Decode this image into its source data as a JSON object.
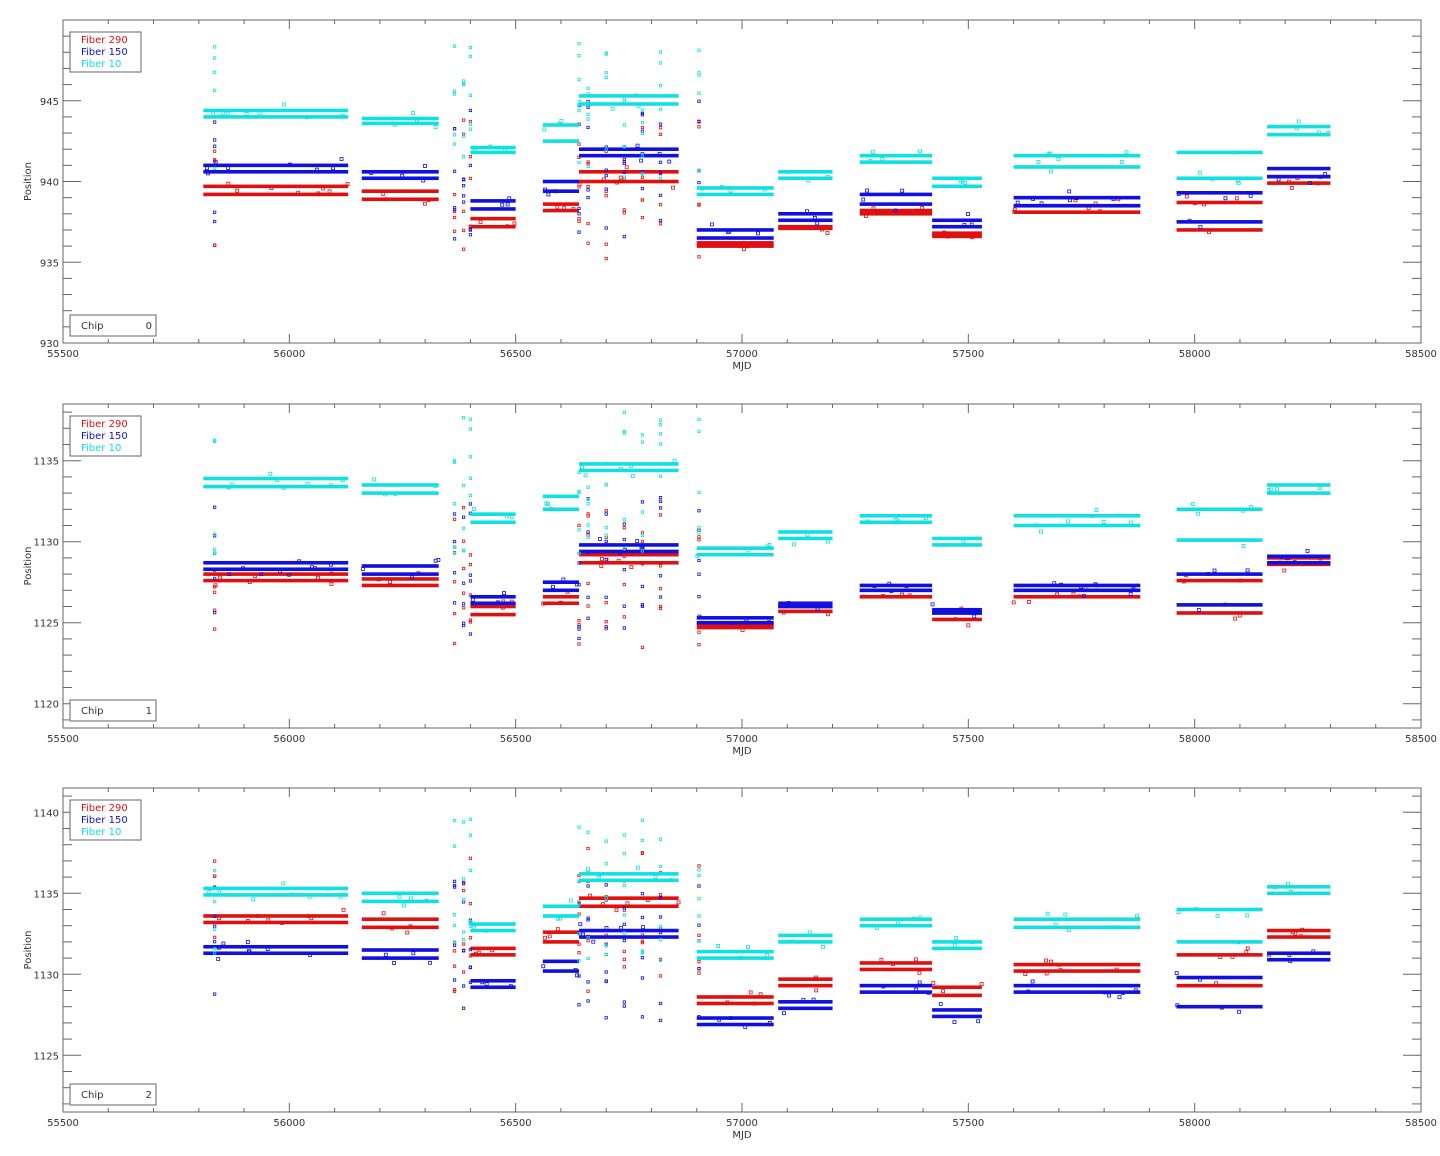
{
  "chart_data": [
    {
      "type": "scatter",
      "title": "",
      "xlabel": "MJD",
      "ylabel": "Position",
      "xlim": [
        55500,
        58500
      ],
      "ylim": [
        930,
        950
      ],
      "xticks": [
        55500,
        56000,
        56500,
        57000,
        57500,
        58000,
        58500
      ],
      "yticks": [
        930,
        935,
        940,
        945
      ],
      "legend": [
        "Fiber 290",
        "Fiber 150",
        "Fiber 10"
      ],
      "chip_label": "Chip",
      "chip_number": "0",
      "series": [
        {
          "name": "Fiber 290",
          "color": "#e01010",
          "segments": [
            [
              55810,
              56130,
              939.2,
              939.7
            ],
            [
              56160,
              56330,
              938.9,
              939.4
            ],
            [
              56400,
              56500,
              937.2,
              937.7
            ],
            [
              56560,
              56640,
              938.2,
              938.6
            ],
            [
              56640,
              56860,
              940.0,
              940.6
            ],
            [
              56900,
              57070,
              936.0,
              936.2
            ],
            [
              57080,
              57200,
              937.1,
              937.2
            ],
            [
              57260,
              57420,
              938.0,
              938.2
            ],
            [
              57420,
              57530,
              936.6,
              936.8
            ],
            [
              57600,
              57880,
              938.1,
              938.5
            ],
            [
              57960,
              58150,
              937.0,
              938.7
            ],
            [
              58160,
              58300,
              939.9,
              940.3
            ]
          ]
        },
        {
          "name": "Fiber 150",
          "color": "#1010e0",
          "segments": [
            [
              55810,
              56130,
              940.6,
              941.0
            ],
            [
              56160,
              56330,
              940.2,
              940.6
            ],
            [
              56400,
              56500,
              938.3,
              938.8
            ],
            [
              56560,
              56640,
              939.4,
              940.0
            ],
            [
              56640,
              56860,
              941.6,
              942.0
            ],
            [
              56900,
              57070,
              936.5,
              937.0
            ],
            [
              57080,
              57200,
              937.6,
              938.0
            ],
            [
              57260,
              57420,
              938.6,
              939.2
            ],
            [
              57420,
              57530,
              937.2,
              937.6
            ],
            [
              57600,
              57880,
              938.5,
              939.0
            ],
            [
              57960,
              58150,
              937.5,
              939.3
            ],
            [
              58160,
              58300,
              940.3,
              940.8
            ]
          ]
        },
        {
          "name": "Fiber 10",
          "color": "#10e0e0",
          "segments": [
            [
              55810,
              56130,
              944.0,
              944.4
            ],
            [
              56160,
              56330,
              943.6,
              943.9
            ],
            [
              56400,
              56500,
              941.8,
              942.1
            ],
            [
              56560,
              56640,
              942.5,
              943.5
            ],
            [
              56640,
              56860,
              944.8,
              945.3
            ],
            [
              56900,
              57070,
              939.2,
              939.6
            ],
            [
              57080,
              57200,
              940.2,
              940.6
            ],
            [
              57260,
              57420,
              941.2,
              941.6
            ],
            [
              57420,
              57530,
              939.7,
              940.2
            ],
            [
              57600,
              57880,
              940.9,
              941.6
            ],
            [
              57960,
              58150,
              940.2,
              941.8
            ],
            [
              58160,
              58300,
              942.9,
              943.4
            ]
          ]
        }
      ]
    },
    {
      "type": "scatter",
      "title": "",
      "xlabel": "MJD",
      "ylabel": "Position",
      "xlim": [
        55500,
        58500
      ],
      "ylim": [
        1118.5,
        1138.5
      ],
      "xticks": [
        55500,
        56000,
        56500,
        57000,
        57500,
        58000,
        58500
      ],
      "yticks": [
        1120,
        1125,
        1130,
        1135
      ],
      "legend": [
        "Fiber 290",
        "Fiber 150",
        "Fiber 10"
      ],
      "chip_label": "Chip",
      "chip_number": "1",
      "series": [
        {
          "name": "Fiber 290",
          "color": "#e01010",
          "segments": [
            [
              55810,
              56130,
              1127.6,
              1128.0
            ],
            [
              56160,
              56330,
              1127.3,
              1127.7
            ],
            [
              56400,
              56500,
              1125.5,
              1126.0
            ],
            [
              56560,
              56640,
              1126.2,
              1126.6
            ],
            [
              56640,
              56860,
              1128.7,
              1129.2
            ],
            [
              56900,
              57070,
              1124.7,
              1124.9
            ],
            [
              57080,
              57200,
              1125.7,
              1126.0
            ],
            [
              57260,
              57420,
              1126.6,
              1127.0
            ],
            [
              57420,
              57530,
              1125.2,
              1125.6
            ],
            [
              57600,
              57880,
              1126.6,
              1127.0
            ],
            [
              57960,
              58150,
              1125.6,
              1127.6
            ],
            [
              58160,
              58300,
              1128.6,
              1129.0
            ]
          ]
        },
        {
          "name": "Fiber 150",
          "color": "#1010e0",
          "segments": [
            [
              55810,
              56130,
              1128.3,
              1128.7
            ],
            [
              56160,
              56330,
              1128.0,
              1128.5
            ],
            [
              56400,
              56500,
              1126.2,
              1126.6
            ],
            [
              56560,
              56640,
              1127.0,
              1127.5
            ],
            [
              56640,
              56860,
              1129.4,
              1129.8
            ],
            [
              56900,
              57070,
              1125.0,
              1125.3
            ],
            [
              57080,
              57200,
              1126.0,
              1126.2
            ],
            [
              57260,
              57420,
              1127.0,
              1127.3
            ],
            [
              57420,
              57530,
              1125.6,
              1125.8
            ],
            [
              57600,
              57880,
              1127.0,
              1127.3
            ],
            [
              57960,
              58150,
              1126.1,
              1128.0
            ],
            [
              58160,
              58300,
              1128.7,
              1129.1
            ]
          ]
        },
        {
          "name": "Fiber 10",
          "color": "#10e0e0",
          "segments": [
            [
              55810,
              56130,
              1133.4,
              1133.9
            ],
            [
              56160,
              56330,
              1133.0,
              1133.5
            ],
            [
              56400,
              56500,
              1131.2,
              1131.7
            ],
            [
              56560,
              56640,
              1132.0,
              1132.8
            ],
            [
              56640,
              56860,
              1134.4,
              1134.8
            ],
            [
              56900,
              57070,
              1129.2,
              1129.6
            ],
            [
              57080,
              57200,
              1130.2,
              1130.6
            ],
            [
              57260,
              57420,
              1131.2,
              1131.6
            ],
            [
              57420,
              57530,
              1129.8,
              1130.2
            ],
            [
              57600,
              57880,
              1131.0,
              1131.6
            ],
            [
              57960,
              58150,
              1130.1,
              1132.0
            ],
            [
              58160,
              58300,
              1133.0,
              1133.5
            ]
          ]
        }
      ]
    },
    {
      "type": "scatter",
      "title": "",
      "xlabel": "MJD",
      "ylabel": "Position",
      "xlim": [
        55500,
        58500
      ],
      "ylim": [
        1121.5,
        1141.5
      ],
      "xticks": [
        55500,
        56000,
        56500,
        57000,
        57500,
        58000,
        58500
      ],
      "yticks": [
        1125,
        1130,
        1135,
        1140
      ],
      "legend": [
        "Fiber 290",
        "Fiber 150",
        "Fiber 10"
      ],
      "chip_label": "Chip",
      "chip_number": "2",
      "series": [
        {
          "name": "Fiber 290",
          "color": "#e01010",
          "segments": [
            [
              55810,
              56130,
              1133.2,
              1133.6
            ],
            [
              56160,
              56330,
              1132.9,
              1133.4
            ],
            [
              56400,
              56500,
              1131.2,
              1131.6
            ],
            [
              56560,
              56640,
              1132.0,
              1132.6
            ],
            [
              56640,
              56860,
              1134.2,
              1134.7
            ],
            [
              56900,
              57070,
              1128.2,
              1128.6
            ],
            [
              57080,
              57200,
              1129.3,
              1129.7
            ],
            [
              57260,
              57420,
              1130.3,
              1130.7
            ],
            [
              57420,
              57530,
              1128.7,
              1129.2
            ],
            [
              57600,
              57880,
              1130.2,
              1130.6
            ],
            [
              57960,
              58150,
              1129.3,
              1131.2
            ],
            [
              58160,
              58300,
              1132.3,
              1132.7
            ]
          ]
        },
        {
          "name": "Fiber 150",
          "color": "#1010e0",
          "segments": [
            [
              55810,
              56130,
              1131.3,
              1131.7
            ],
            [
              56160,
              56330,
              1131.0,
              1131.5
            ],
            [
              56400,
              56500,
              1129.2,
              1129.6
            ],
            [
              56560,
              56640,
              1130.2,
              1130.8
            ],
            [
              56640,
              56860,
              1132.3,
              1132.7
            ],
            [
              56900,
              57070,
              1126.9,
              1127.3
            ],
            [
              57080,
              57200,
              1127.9,
              1128.3
            ],
            [
              57260,
              57420,
              1128.9,
              1129.3
            ],
            [
              57420,
              57530,
              1127.4,
              1127.8
            ],
            [
              57600,
              57880,
              1128.9,
              1129.3
            ],
            [
              57960,
              58150,
              1128.0,
              1129.8
            ],
            [
              58160,
              58300,
              1130.9,
              1131.3
            ]
          ]
        },
        {
          "name": "Fiber 10",
          "color": "#10e0e0",
          "segments": [
            [
              55810,
              56130,
              1134.9,
              1135.3
            ],
            [
              56160,
              56330,
              1134.5,
              1135.0
            ],
            [
              56400,
              56500,
              1132.7,
              1133.1
            ],
            [
              56560,
              56640,
              1133.6,
              1134.2
            ],
            [
              56640,
              56860,
              1135.8,
              1136.2
            ],
            [
              56900,
              57070,
              1131.0,
              1131.4
            ],
            [
              57080,
              57200,
              1132.0,
              1132.4
            ],
            [
              57260,
              57420,
              1133.0,
              1133.4
            ],
            [
              57420,
              57530,
              1131.6,
              1132.0
            ],
            [
              57600,
              57880,
              1132.9,
              1133.4
            ],
            [
              57960,
              58150,
              1132.0,
              1134.0
            ],
            [
              58160,
              58300,
              1135.0,
              1135.4
            ]
          ]
        }
      ]
    }
  ]
}
